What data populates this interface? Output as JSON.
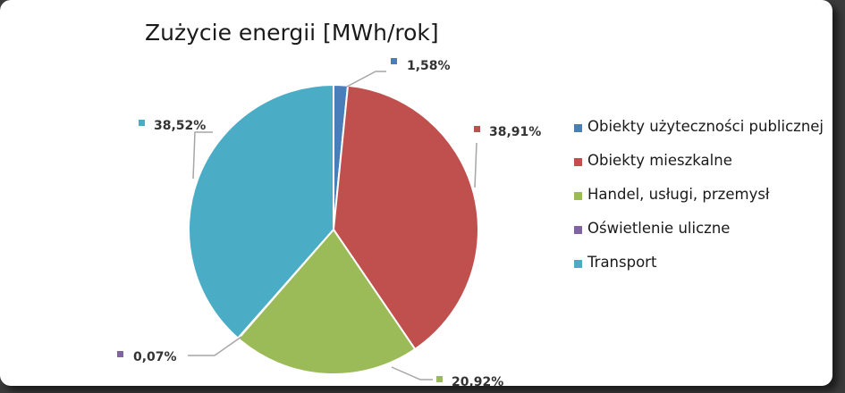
{
  "chart_data": {
    "type": "pie",
    "title": "Zużycie energii [MWh/rok]",
    "categories": [
      "Obiekty użyteczności publicznej",
      "Obiekty mieszkalne",
      "Handel, usługi, przemysł",
      "Oświetlenie uliczne",
      "Transport"
    ],
    "values": [
      1.58,
      38.91,
      20.92,
      0.07,
      38.52
    ],
    "labels": [
      "1,58%",
      "38,91%",
      "20,92%",
      "0,07%",
      "38,52%"
    ],
    "colors": [
      "#4a7ebb",
      "#c0504d",
      "#9bbb59",
      "#8064a2",
      "#4bacc6"
    ],
    "legend_position": "right"
  }
}
